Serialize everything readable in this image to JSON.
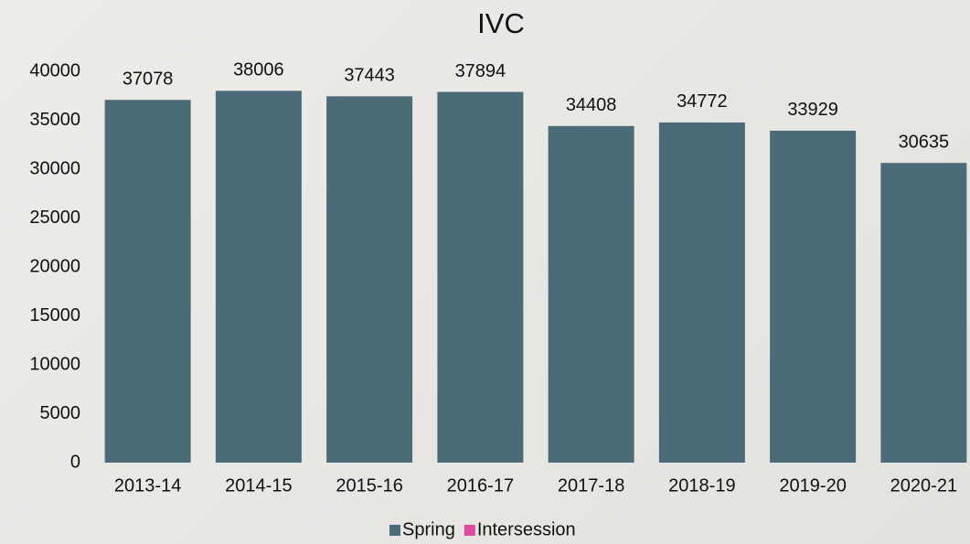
{
  "chart_data": {
    "type": "bar",
    "title": "IVC",
    "categories": [
      "2013-14",
      "2014-15",
      "2015-16",
      "2016-17",
      "2017-18",
      "2018-19",
      "2019-20",
      "2020-21"
    ],
    "series": [
      {
        "name": "Spring",
        "color": "#4b6b78",
        "values": [
          37078,
          38006,
          37443,
          37894,
          34408,
          34772,
          33929,
          30635
        ]
      },
      {
        "name": "Intersession",
        "color": "#e0479e",
        "values": [
          null,
          null,
          null,
          null,
          null,
          null,
          null,
          null
        ]
      }
    ],
    "ylim": [
      0,
      40000
    ],
    "yticks": [
      0,
      5000,
      10000,
      15000,
      20000,
      25000,
      30000,
      35000,
      40000
    ],
    "grid": false,
    "legend": "bottom"
  }
}
